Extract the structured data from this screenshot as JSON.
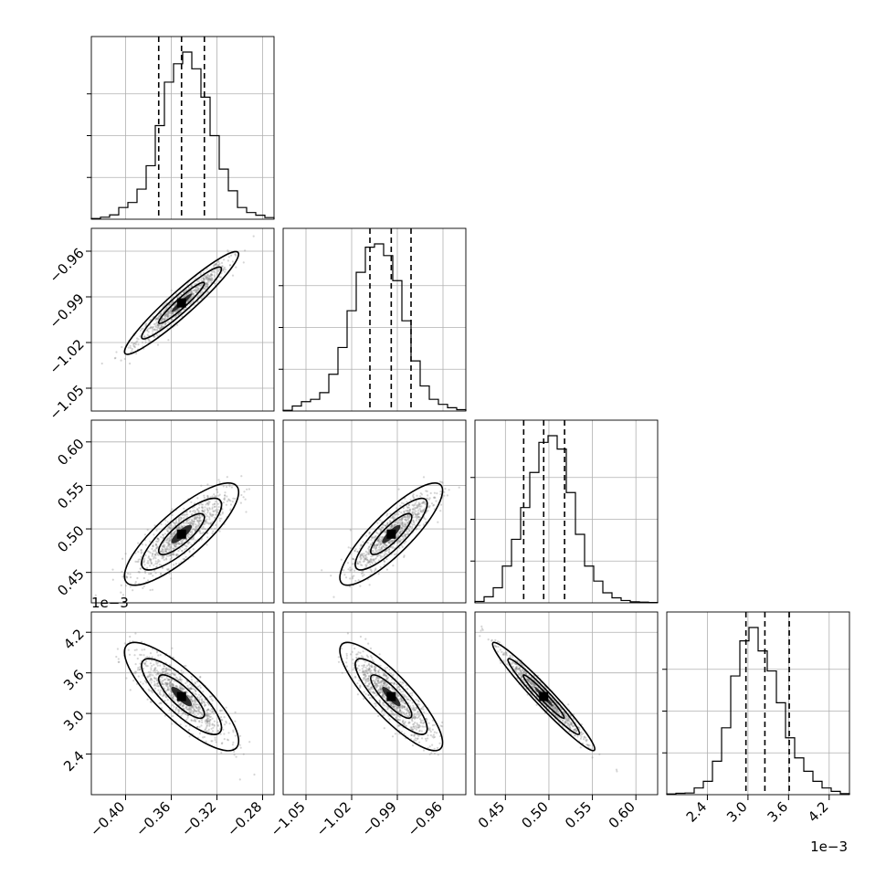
{
  "chart_data": {
    "type": "corner",
    "title": "",
    "params": [
      {
        "label": "",
        "range": [
          -0.43,
          -0.27
        ],
        "ticks": [
          "−0.40",
          "−0.36",
          "−0.32",
          "−0.28"
        ],
        "tick_values": [
          -0.4,
          -0.36,
          -0.32,
          -0.28
        ],
        "quantiles": [
          -0.371,
          -0.351,
          -0.331
        ],
        "exponent": ""
      },
      {
        "label": "",
        "range": [
          -1.065,
          -0.945
        ],
        "ticks": [
          "−1.05",
          "−1.02",
          "−0.99",
          "−0.96"
        ],
        "tick_values": [
          -1.05,
          -1.02,
          -0.99,
          -0.96
        ],
        "quantiles": [
          -1.008,
          -0.994,
          -0.981
        ],
        "exponent": ""
      },
      {
        "label": "",
        "range": [
          0.415,
          0.625
        ],
        "ticks": [
          "0.45",
          "0.50",
          "0.55",
          "0.60"
        ],
        "tick_values": [
          0.45,
          0.5,
          0.55,
          0.6
        ],
        "quantiles": [
          0.471,
          0.494,
          0.518
        ],
        "exponent": ""
      },
      {
        "label": "",
        "range": [
          1.8,
          4.5
        ],
        "ticks": [
          "2.4",
          "3.0",
          "3.6",
          "4.2"
        ],
        "tick_values": [
          2.4,
          3.0,
          3.6,
          4.2
        ],
        "quantiles": [
          2.97,
          3.25,
          3.61
        ],
        "exponent": "1e−3"
      }
    ],
    "histograms": [
      [
        0.004,
        0.012,
        0.026,
        0.07,
        0.1,
        0.18,
        0.32,
        0.56,
        0.82,
        0.93,
        1.0,
        0.9,
        0.73,
        0.5,
        0.3,
        0.17,
        0.07,
        0.04,
        0.024,
        0.01
      ],
      [
        0.004,
        0.03,
        0.056,
        0.07,
        0.11,
        0.22,
        0.38,
        0.6,
        0.83,
        0.98,
        1.0,
        0.93,
        0.78,
        0.54,
        0.3,
        0.15,
        0.07,
        0.04,
        0.02,
        0.008
      ],
      [
        0.008,
        0.036,
        0.09,
        0.22,
        0.38,
        0.57,
        0.78,
        0.96,
        1.0,
        0.92,
        0.66,
        0.41,
        0.22,
        0.13,
        0.06,
        0.03,
        0.014,
        0.006,
        0.004,
        0.002
      ],
      [
        0.004,
        0.008,
        0.01,
        0.04,
        0.08,
        0.2,
        0.4,
        0.71,
        0.92,
        1.0,
        0.86,
        0.74,
        0.55,
        0.34,
        0.22,
        0.14,
        0.08,
        0.04,
        0.02,
        0.006
      ]
    ],
    "correlations": {
      "1-0": 0.95,
      "2-0": 0.82,
      "2-1": 0.85,
      "3-0": -0.82,
      "3-1": -0.85,
      "3-2": -0.97
    },
    "grid": true,
    "quantile_lines": "dashed",
    "contour_levels": 3
  }
}
